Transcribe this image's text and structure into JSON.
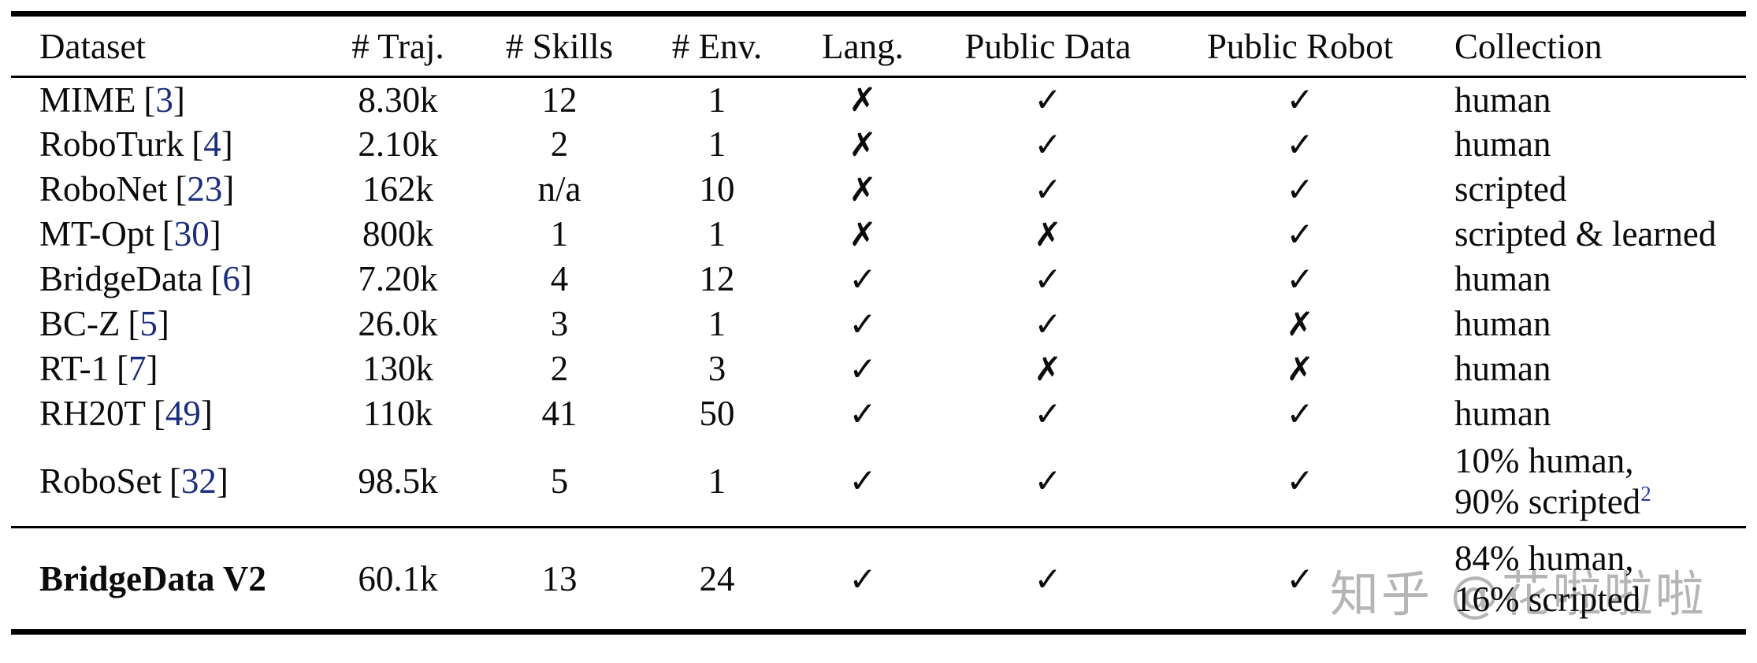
{
  "watermark": {
    "text": "知乎 @花啦啦啦"
  },
  "colors": {
    "background": "#ffffff",
    "text": "#0b0b0b",
    "rule": "#000000",
    "citation_link": "#1b2d7d",
    "footnote_superscript": "#2a3da6",
    "watermark": "#b5b5b5"
  },
  "marks": {
    "bracket_open": "[",
    "bracket_close": "]"
  },
  "columns": [
    "Dataset",
    "# Traj.",
    "# Skills",
    "# Env.",
    "Lang.",
    "Public Data",
    "Public Robot",
    "Collection"
  ],
  "rows": [
    {
      "name": "MIME",
      "cite": "3",
      "traj": "8.30k",
      "skills": "12",
      "env": "1",
      "lang": "✗",
      "public_data": "✓",
      "public_robot": "✓",
      "collection": "human"
    },
    {
      "name": "RoboTurk",
      "cite": "4",
      "traj": "2.10k",
      "skills": "2",
      "env": "1",
      "lang": "✗",
      "public_data": "✓",
      "public_robot": "✓",
      "collection": "human"
    },
    {
      "name": "RoboNet",
      "cite": "23",
      "traj": "162k",
      "skills": "n/a",
      "env": "10",
      "lang": "✗",
      "public_data": "✓",
      "public_robot": "✓",
      "collection": "scripted"
    },
    {
      "name": "MT-Opt",
      "cite": "30",
      "traj": "800k",
      "skills": "1",
      "env": "1",
      "lang": "✗",
      "public_data": "✗",
      "public_robot": "✓",
      "collection": "scripted & learned"
    },
    {
      "name": "BridgeData",
      "cite": "6",
      "traj": "7.20k",
      "skills": "4",
      "env": "12",
      "lang": "✓",
      "public_data": "✓",
      "public_robot": "✓",
      "collection": "human"
    },
    {
      "name": "BC-Z",
      "cite": "5",
      "traj": "26.0k",
      "skills": "3",
      "env": "1",
      "lang": "✓",
      "public_data": "✓",
      "public_robot": "✗",
      "collection": "human"
    },
    {
      "name": "RT-1",
      "cite": "7",
      "traj": "130k",
      "skills": "2",
      "env": "3",
      "lang": "✓",
      "public_data": "✗",
      "public_robot": "✗",
      "collection": "human"
    },
    {
      "name": "RH20T",
      "cite": "49",
      "traj": "110k",
      "skills": "41",
      "env": "50",
      "lang": "✓",
      "public_data": "✓",
      "public_robot": "✓",
      "collection": "human"
    },
    {
      "name": "RoboSet",
      "cite": "32",
      "traj": "98.5k",
      "skills": "5",
      "env": "1",
      "lang": "✓",
      "public_data": "✓",
      "public_robot": "✓",
      "collection_line1": "10% human,",
      "collection_line2": "90% scripted",
      "collection_sup": "2"
    },
    {
      "name": "BridgeData V2",
      "traj": "60.1k",
      "skills": "13",
      "env": "24",
      "lang": "✓",
      "public_data": "✓",
      "public_robot": "✓",
      "collection_line1": "84% human,",
      "collection_line2": "16% scripted"
    }
  ]
}
